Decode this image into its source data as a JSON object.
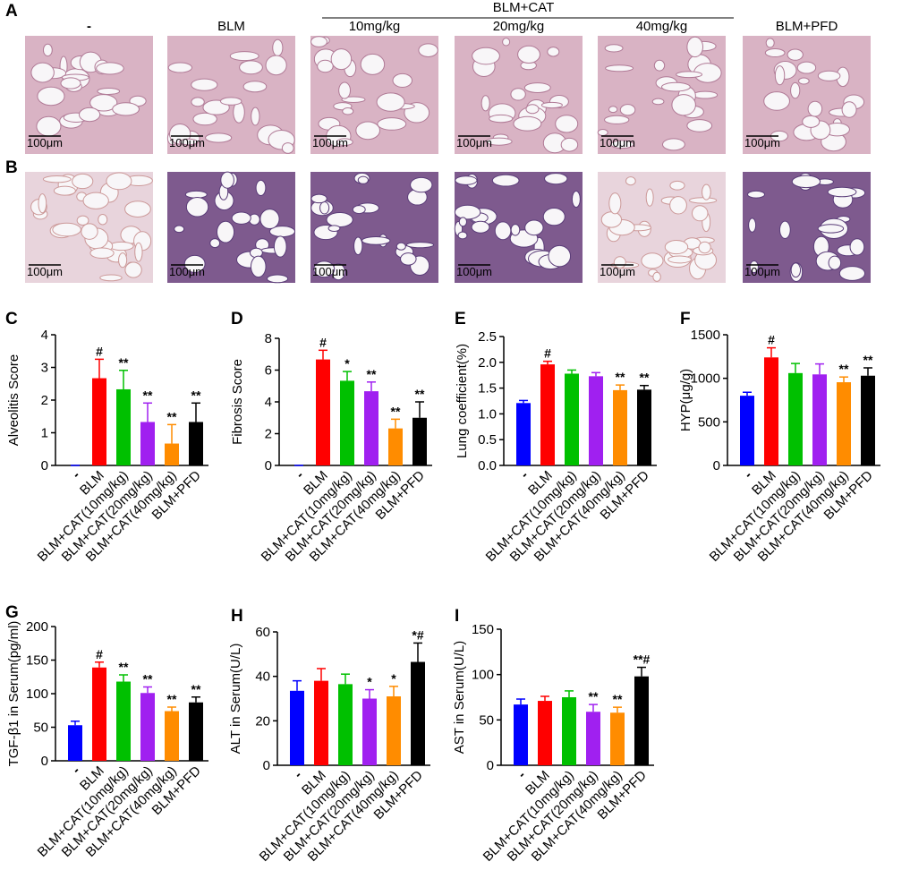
{
  "figure": {
    "panel_a": "A",
    "panel_b": "B",
    "group_label": "BLM+CAT",
    "headers": [
      "-",
      "BLM",
      "10mg/kg",
      "20mg/kg",
      "40mg/kg",
      "BLM+PFD"
    ],
    "scale_bar": "100μm"
  },
  "chart_data": [
    {
      "type": "bar",
      "panel": "C",
      "ylabel": "Alveolitis Score",
      "categories": [
        "-",
        "BLM",
        "BLM+CAT(10mg/kg)",
        "BLM+CAT(20mg/kg)",
        "BLM+CAT(40mg/kg)",
        "BLM+PFD"
      ],
      "colors": [
        "#0000ff",
        "#ff0000",
        "#00c000",
        "#a020f0",
        "#ff8c00",
        "#000000"
      ],
      "values": [
        0,
        2.67,
        2.33,
        1.33,
        0.67,
        1.33
      ],
      "errors": [
        0,
        0.58,
        0.58,
        0.58,
        0.58,
        0.58
      ],
      "annotations": [
        null,
        "#",
        "**",
        "**",
        "**",
        "**"
      ],
      "ylim": [
        0,
        4
      ],
      "yticks": [
        0,
        1,
        2,
        3,
        4
      ]
    },
    {
      "type": "bar",
      "panel": "D",
      "ylabel": "Fibrosis Score",
      "categories": [
        "-",
        "BLM",
        "BLM+CAT(10mg/kg)",
        "BLM+CAT(20mg/kg)",
        "BLM+CAT(40mg/kg)",
        "BLM+PFD"
      ],
      "colors": [
        "#0000ff",
        "#ff0000",
        "#00c000",
        "#a020f0",
        "#ff8c00",
        "#000000"
      ],
      "values": [
        0,
        6.67,
        5.33,
        4.67,
        2.33,
        3.0
      ],
      "errors": [
        0,
        0.58,
        0.58,
        0.58,
        0.58,
        1.0
      ],
      "annotations": [
        null,
        "#",
        "*",
        "**",
        "**",
        "**"
      ],
      "ylim": [
        0,
        8
      ],
      "yticks": [
        0,
        2,
        4,
        6,
        8
      ]
    },
    {
      "type": "bar",
      "panel": "E",
      "ylabel": "Lung coefficient(%)",
      "categories": [
        "-",
        "BLM",
        "BLM+CAT(10mg/kg)",
        "BLM+CAT(20mg/kg)",
        "BLM+CAT(40mg/kg)",
        "BLM+PFD"
      ],
      "colors": [
        "#0000ff",
        "#ff0000",
        "#00c000",
        "#a020f0",
        "#ff8c00",
        "#000000"
      ],
      "values": [
        1.21,
        1.96,
        1.78,
        1.73,
        1.46,
        1.47
      ],
      "errors": [
        0.05,
        0.06,
        0.07,
        0.07,
        0.1,
        0.08
      ],
      "annotations": [
        null,
        "#",
        null,
        null,
        "**",
        "**"
      ],
      "ylim": [
        0,
        2.5
      ],
      "yticks": [
        {
          "value": 0,
          "label": "0.0"
        },
        0.5,
        {
          "value": 1,
          "label": "1.0"
        },
        1.5,
        {
          "value": 2,
          "label": "2.0"
        },
        2.5
      ]
    },
    {
      "type": "bar",
      "panel": "F",
      "ylabel": "HYP(μg/g)",
      "categories": [
        "-",
        "BLM",
        "BLM+CAT(10mg/kg)",
        "BLM+CAT(20mg/kg)",
        "BLM+CAT(40mg/kg)",
        "BLM+PFD"
      ],
      "colors": [
        "#0000ff",
        "#ff0000",
        "#00c000",
        "#a020f0",
        "#ff8c00",
        "#000000"
      ],
      "values": [
        800,
        1240,
        1060,
        1045,
        955,
        1030
      ],
      "errors": [
        40,
        110,
        110,
        120,
        60,
        90
      ],
      "annotations": [
        null,
        "#",
        null,
        null,
        "**",
        "**"
      ],
      "ylim": [
        0,
        1500
      ],
      "yticks": [
        0,
        500,
        1000,
        1500
      ]
    },
    {
      "type": "bar",
      "panel": "G",
      "ylabel": "TGF-β1 in Serum(pg/ml)",
      "categories": [
        "-",
        "BLM",
        "BLM+CAT(10mg/kg)",
        "BLM+CAT(20mg/kg)",
        "BLM+CAT(40mg/kg)",
        "BLM+PFD"
      ],
      "colors": [
        "#0000ff",
        "#ff0000",
        "#00c000",
        "#a020f0",
        "#ff8c00",
        "#000000"
      ],
      "values": [
        53,
        139,
        118,
        101,
        74,
        87
      ],
      "errors": [
        6,
        8,
        10,
        9,
        6,
        8
      ],
      "annotations": [
        null,
        "#",
        "**",
        "**",
        "**",
        "**"
      ],
      "ylim": [
        0,
        200
      ],
      "yticks": [
        0,
        50,
        100,
        150,
        200
      ]
    },
    {
      "type": "bar",
      "panel": "H",
      "ylabel": "ALT in Serum(U/L)",
      "categories": [
        "-",
        "BLM",
        "BLM+CAT(10mg/kg)",
        "BLM+CAT(20mg/kg)",
        "BLM+CAT(40mg/kg)",
        "BLM+PFD"
      ],
      "colors": [
        "#0000ff",
        "#ff0000",
        "#00c000",
        "#a020f0",
        "#ff8c00",
        "#000000"
      ],
      "values": [
        33.5,
        38,
        36.5,
        30,
        31,
        46.5
      ],
      "errors": [
        4.5,
        5.5,
        4.5,
        4,
        4.5,
        8.5
      ],
      "annotations": [
        null,
        null,
        null,
        "*",
        "*",
        "*#"
      ],
      "ylim": [
        0,
        60
      ],
      "yticks": [
        0,
        20,
        40,
        60
      ]
    },
    {
      "type": "bar",
      "panel": "I",
      "ylabel": "AST in Serum(U/L)",
      "categories": [
        "-",
        "BLM",
        "BLM+CAT(10mg/kg)",
        "BLM+CAT(20mg/kg)",
        "BLM+CAT(40mg/kg)",
        "BLM+PFD"
      ],
      "colors": [
        "#0000ff",
        "#ff0000",
        "#00c000",
        "#a020f0",
        "#ff8c00",
        "#000000"
      ],
      "values": [
        67,
        71,
        75,
        59,
        58,
        98
      ],
      "errors": [
        6,
        5,
        7,
        8,
        6,
        10
      ],
      "annotations": [
        null,
        null,
        null,
        "**",
        "**",
        "**#"
      ],
      "ylim": [
        0,
        150
      ],
      "yticks": [
        0,
        50,
        100,
        150
      ]
    }
  ]
}
